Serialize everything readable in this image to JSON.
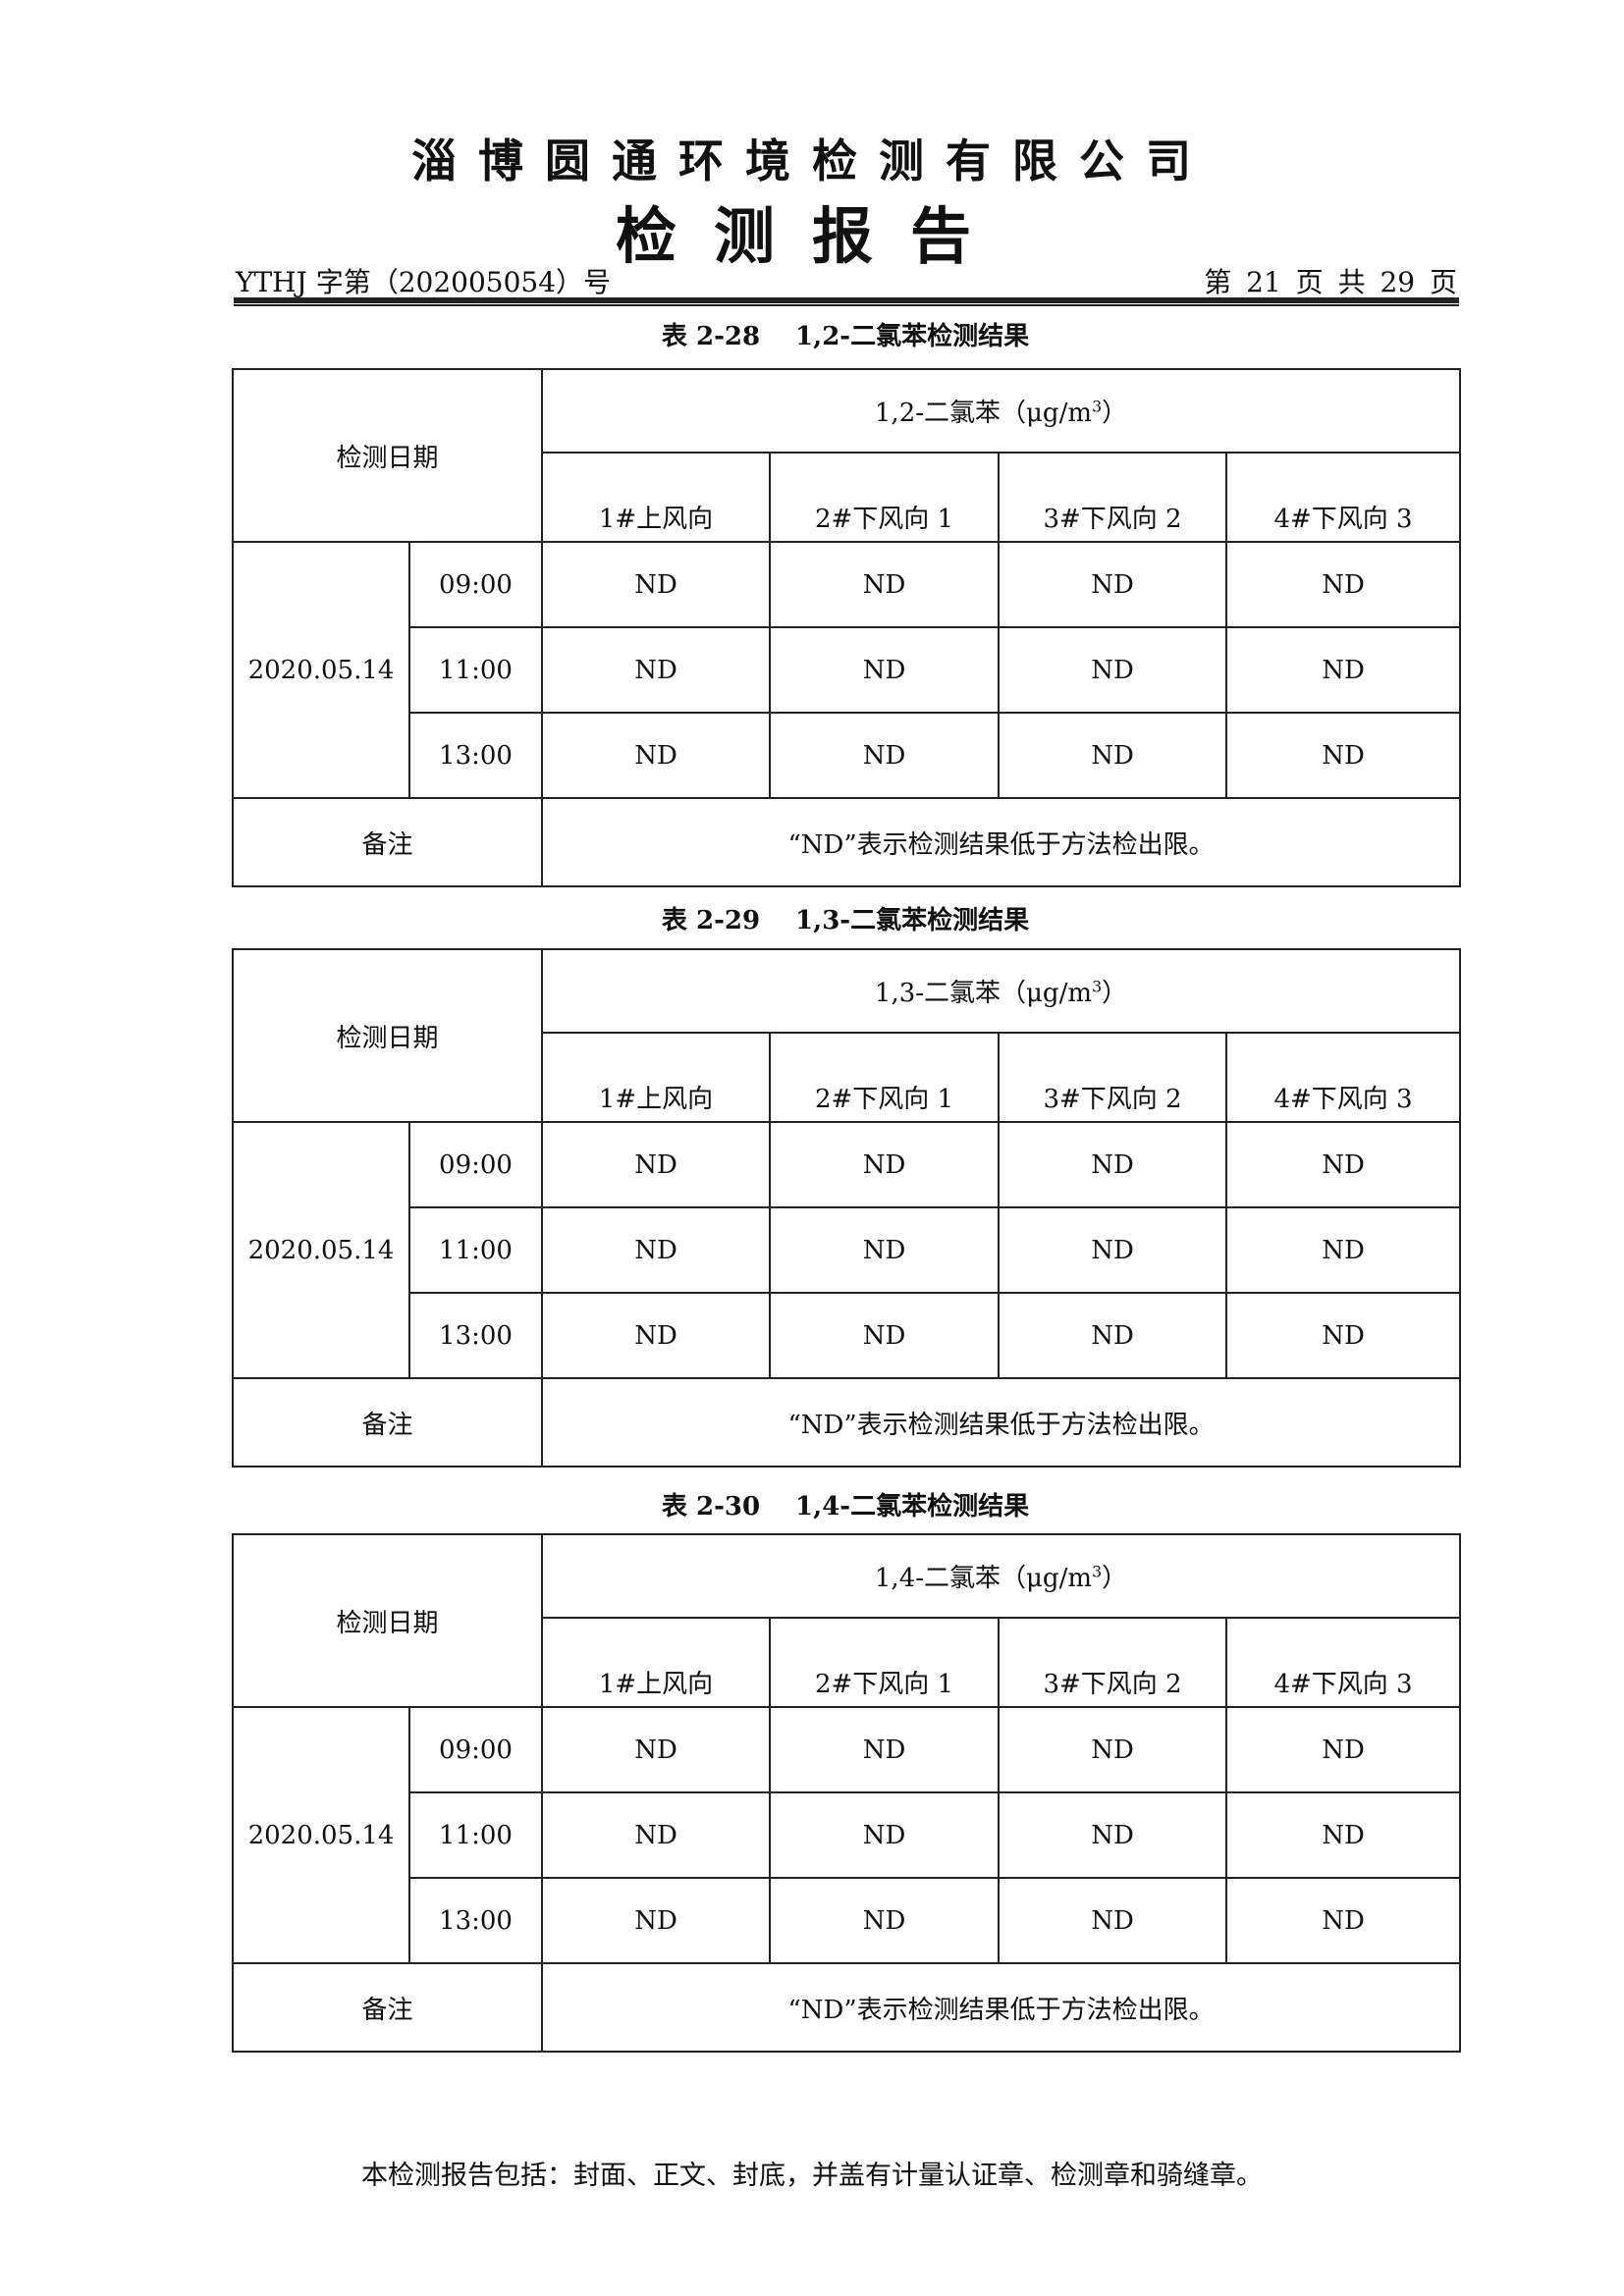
{
  "header": {
    "company": "淄博圆通环境检测有限公司",
    "report_title": "检测报告",
    "doc_number": "YTHJ 字第（202005054）号",
    "page_info": "第 21 页 共 29 页"
  },
  "tables": [
    {
      "number": "表 2-28",
      "title": "1,2-二氯苯检测结果",
      "date_header": "检测日期",
      "param_header": "1,2-二氯苯（μg/m",
      "unit_sup": "3",
      "unit_close": "）",
      "columns": [
        "1#上风向",
        "2#下风向 1",
        "3#下风向 2",
        "4#下风向 3"
      ],
      "date": "2020.05.14",
      "rows": [
        {
          "time": "09:00",
          "values": [
            "ND",
            "ND",
            "ND",
            "ND"
          ]
        },
        {
          "time": "11:00",
          "values": [
            "ND",
            "ND",
            "ND",
            "ND"
          ]
        },
        {
          "time": "13:00",
          "values": [
            "ND",
            "ND",
            "ND",
            "ND"
          ]
        }
      ],
      "note_label": "备注",
      "note": "“ND”表示检测结果低于方法检出限。"
    },
    {
      "number": "表 2-29",
      "title": "1,3-二氯苯检测结果",
      "date_header": "检测日期",
      "param_header": "1,3-二氯苯（μg/m",
      "unit_sup": "3",
      "unit_close": "）",
      "columns": [
        "1#上风向",
        "2#下风向 1",
        "3#下风向 2",
        "4#下风向 3"
      ],
      "date": "2020.05.14",
      "rows": [
        {
          "time": "09:00",
          "values": [
            "ND",
            "ND",
            "ND",
            "ND"
          ]
        },
        {
          "time": "11:00",
          "values": [
            "ND",
            "ND",
            "ND",
            "ND"
          ]
        },
        {
          "time": "13:00",
          "values": [
            "ND",
            "ND",
            "ND",
            "ND"
          ]
        }
      ],
      "note_label": "备注",
      "note": "“ND”表示检测结果低于方法检出限。"
    },
    {
      "number": "表 2-30",
      "title": "1,4-二氯苯检测结果",
      "date_header": "检测日期",
      "param_header": "1,4-二氯苯（μg/m",
      "unit_sup": "3",
      "unit_close": "）",
      "columns": [
        "1#上风向",
        "2#下风向 1",
        "3#下风向 2",
        "4#下风向 3"
      ],
      "date": "2020.05.14",
      "rows": [
        {
          "time": "09:00",
          "values": [
            "ND",
            "ND",
            "ND",
            "ND"
          ]
        },
        {
          "time": "11:00",
          "values": [
            "ND",
            "ND",
            "ND",
            "ND"
          ]
        },
        {
          "time": "13:00",
          "values": [
            "ND",
            "ND",
            "ND",
            "ND"
          ]
        }
      ],
      "note_label": "备注",
      "note": "“ND”表示检测结果低于方法检出限。"
    }
  ],
  "footer": "本检测报告包括：封面、正文、封底，并盖有计量认证章、检测章和骑缝章。"
}
